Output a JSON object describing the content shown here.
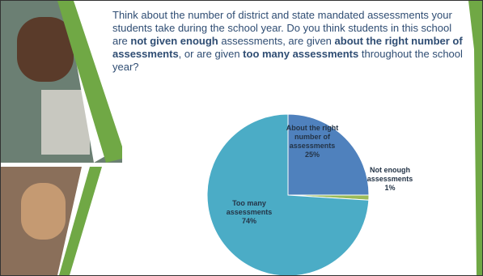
{
  "chart_data": {
    "type": "pie",
    "title_parts": [
      {
        "text": "Think about the number of district and state mandated assessments your students take during the school year. Do you think students in this school are ",
        "bold": false
      },
      {
        "text": "not given enough",
        "bold": true
      },
      {
        "text": " assessments, are given ",
        "bold": false
      },
      {
        "text": "about the right number of assessments",
        "bold": true
      },
      {
        "text": ", or are given ",
        "bold": false
      },
      {
        "text": "too many assessments",
        "bold": true
      },
      {
        "text": " throughout the school year?",
        "bold": false
      }
    ],
    "categories": [
      "About the right number of assessments",
      "Not enough assessments",
      "Too many assessments"
    ],
    "values": [
      25,
      1,
      74
    ],
    "value_labels": [
      "25%",
      "1%",
      "74%"
    ],
    "colors": [
      "#4f81bd",
      "#9bbb59",
      "#4bacc6"
    ]
  }
}
